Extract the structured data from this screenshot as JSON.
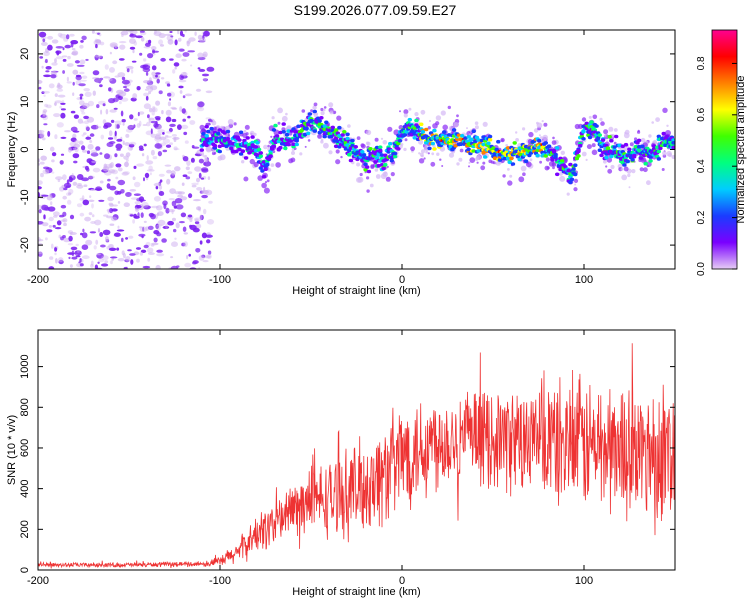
{
  "title": "S199.2026.077.09.59.E27",
  "chart_data": [
    {
      "type": "heatmap",
      "xlabel": "Height of straight line (km)",
      "ylabel": "Frequency (Hz)",
      "xlim": [
        -200,
        150
      ],
      "ylim": [
        -25,
        25
      ],
      "xticks": [
        -200,
        -100,
        0,
        100
      ],
      "yticks": [
        -20,
        -10,
        0,
        10,
        20
      ],
      "ridge": [
        [
          -110,
          2
        ],
        [
          -100,
          2
        ],
        [
          -90,
          1
        ],
        [
          -80,
          0
        ],
        [
          -75,
          -4
        ],
        [
          -70,
          2
        ],
        [
          -60,
          2
        ],
        [
          -55,
          4
        ],
        [
          -50,
          6
        ],
        [
          -45,
          5
        ],
        [
          -40,
          4
        ],
        [
          -35,
          3
        ],
        [
          -30,
          1
        ],
        [
          -25,
          -1
        ],
        [
          -20,
          -2
        ],
        [
          -15,
          -1
        ],
        [
          -10,
          -2
        ],
        [
          -5,
          -1
        ],
        [
          0,
          4
        ],
        [
          5,
          5
        ],
        [
          10,
          3
        ],
        [
          15,
          2
        ],
        [
          20,
          2
        ],
        [
          30,
          2
        ],
        [
          40,
          1
        ],
        [
          50,
          0
        ],
        [
          55,
          -1
        ],
        [
          60,
          -1
        ],
        [
          70,
          0
        ],
        [
          75,
          1
        ],
        [
          80,
          0
        ],
        [
          85,
          -2
        ],
        [
          90,
          -4
        ],
        [
          93,
          -6
        ],
        [
          96,
          -2
        ],
        [
          100,
          5
        ],
        [
          105,
          4
        ],
        [
          110,
          1
        ],
        [
          115,
          0
        ],
        [
          120,
          -1
        ],
        [
          125,
          -1
        ],
        [
          130,
          0
        ],
        [
          135,
          -1
        ],
        [
          140,
          0
        ],
        [
          145,
          2
        ],
        [
          150,
          1
        ]
      ],
      "colorbar": {
        "label": "Normalized spectral amplitude",
        "ticks": [
          0.0,
          0.2,
          0.4,
          0.6,
          0.8
        ],
        "range": [
          0,
          0.93
        ],
        "colors": [
          "#e6cdf5",
          "#7a00ff",
          "#1a3cff",
          "#00ccff",
          "#00ff80",
          "#40ff00",
          "#ffff00",
          "#ff8000",
          "#ff0000",
          "#ff0090"
        ]
      }
    },
    {
      "type": "line",
      "xlabel": "Height of straight line (km)",
      "ylabel": "SNR (10 * v/v)",
      "xlim": [
        -200,
        150
      ],
      "ylim": [
        0,
        1180
      ],
      "xticks": [
        -200,
        -100,
        0,
        100
      ],
      "yticks": [
        0,
        200,
        400,
        600,
        800,
        1000
      ],
      "color": "#ee3333",
      "envelope": [
        [
          -200,
          25
        ],
        [
          -150,
          25
        ],
        [
          -110,
          30
        ],
        [
          -100,
          40
        ],
        [
          -90,
          90
        ],
        [
          -80,
          170
        ],
        [
          -70,
          230
        ],
        [
          -60,
          300
        ],
        [
          -50,
          340
        ],
        [
          -40,
          350
        ],
        [
          -30,
          380
        ],
        [
          -20,
          420
        ],
        [
          -10,
          470
        ],
        [
          0,
          560
        ],
        [
          10,
          610
        ],
        [
          20,
          640
        ],
        [
          30,
          650
        ],
        [
          40,
          650
        ],
        [
          50,
          650
        ],
        [
          60,
          640
        ],
        [
          70,
          630
        ],
        [
          80,
          630
        ],
        [
          90,
          620
        ],
        [
          100,
          620
        ],
        [
          110,
          600
        ],
        [
          120,
          600
        ],
        [
          130,
          590
        ],
        [
          140,
          580
        ],
        [
          150,
          580
        ]
      ],
      "spread": [
        [
          -200,
          12
        ],
        [
          -110,
          15
        ],
        [
          -100,
          30
        ],
        [
          -80,
          110
        ],
        [
          -60,
          160
        ],
        [
          -40,
          220
        ],
        [
          -20,
          280
        ],
        [
          0,
          320
        ],
        [
          20,
          280
        ],
        [
          40,
          260
        ],
        [
          60,
          300
        ],
        [
          80,
          360
        ],
        [
          100,
          380
        ],
        [
          120,
          380
        ],
        [
          150,
          380
        ]
      ]
    }
  ]
}
